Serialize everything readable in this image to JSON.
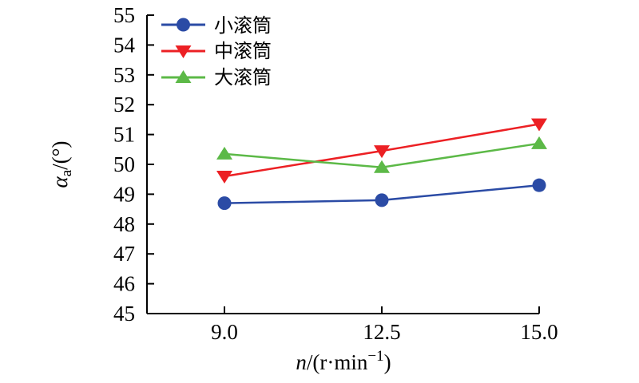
{
  "chart_data": {
    "type": "line",
    "categories": [
      "9.0",
      "12.5",
      "15.0"
    ],
    "series": [
      {
        "name": "小滚筒",
        "marker": "circle",
        "color": "#2B4BA5",
        "values": [
          48.7,
          48.8,
          49.3
        ]
      },
      {
        "name": "中滚筒",
        "marker": "triangle-down",
        "color": "#EC2024",
        "values": [
          49.6,
          50.45,
          51.35
        ]
      },
      {
        "name": "大滚筒",
        "marker": "triangle-up",
        "color": "#5CB947",
        "values": [
          50.35,
          49.9,
          50.7
        ]
      }
    ],
    "xlabel": "n/(r·min⁻¹)",
    "xlabel_parts": {
      "var": "n",
      "mid": "/(r·min",
      "sup": "−1",
      "end": ")"
    },
    "ylabel": "αa/(°)",
    "ylabel_parts": {
      "var": "α",
      "sub": "a",
      "rest": "/(°)"
    },
    "ylim": [
      45,
      55
    ],
    "yticks": [
      45,
      46,
      47,
      48,
      49,
      50,
      51,
      52,
      53,
      54,
      55
    ],
    "xtick_labels": [
      "9.0",
      "12.5",
      "15.0"
    ],
    "legend_position": "top-left-inside",
    "grid": false,
    "axis_color": "#000000",
    "background": "#FFFFFF"
  }
}
